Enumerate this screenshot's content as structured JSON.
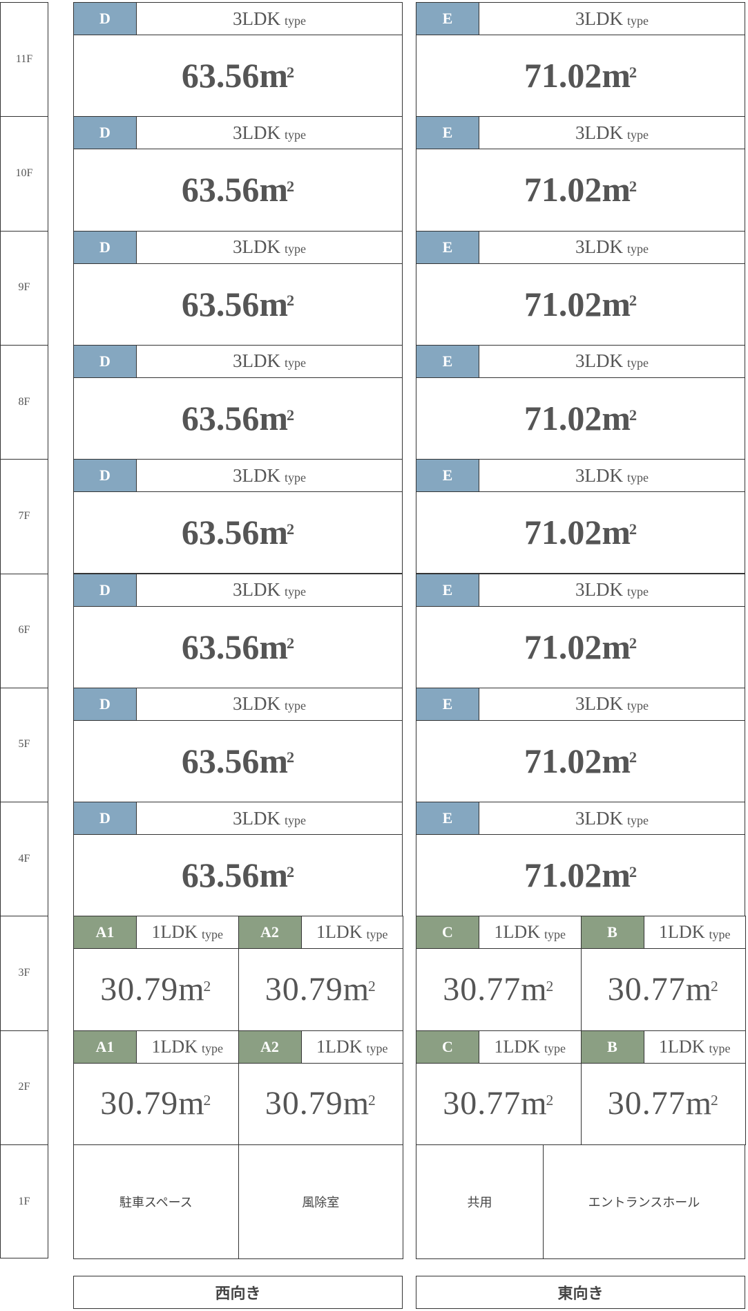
{
  "floors": [
    "11F",
    "10F",
    "9F",
    "8F",
    "7F",
    "6F",
    "5F",
    "4F",
    "3F",
    "2F",
    "1F"
  ],
  "upper": {
    "west": {
      "badge": "D",
      "type": "3LDK",
      "type_suffix": "type",
      "area": "63.56",
      "unit": "m",
      "sup": "2"
    },
    "east": {
      "badge": "E",
      "type": "3LDK",
      "type_suffix": "type",
      "area": "71.02",
      "unit": "m",
      "sup": "2"
    }
  },
  "lower": [
    {
      "badge": "A1",
      "type": "1LDK",
      "type_suffix": "type",
      "area": "30.79",
      "unit": "m",
      "sup": "2"
    },
    {
      "badge": "A2",
      "type": "1LDK",
      "type_suffix": "type",
      "area": "30.79",
      "unit": "m",
      "sup": "2"
    },
    {
      "badge": "C",
      "type": "1LDK",
      "type_suffix": "type",
      "area": "30.77",
      "unit": "m",
      "sup": "2"
    },
    {
      "badge": "B",
      "type": "1LDK",
      "type_suffix": "type",
      "area": "30.77",
      "unit": "m",
      "sup": "2"
    }
  ],
  "ground": [
    "駐車スペース",
    "風除室",
    "共用",
    "エントランスホール"
  ],
  "orientation": {
    "west": "西向き",
    "east": "東向き"
  },
  "colors": {
    "upper_badge": "#85a7c0",
    "lower_badge": "#8b9f83"
  }
}
